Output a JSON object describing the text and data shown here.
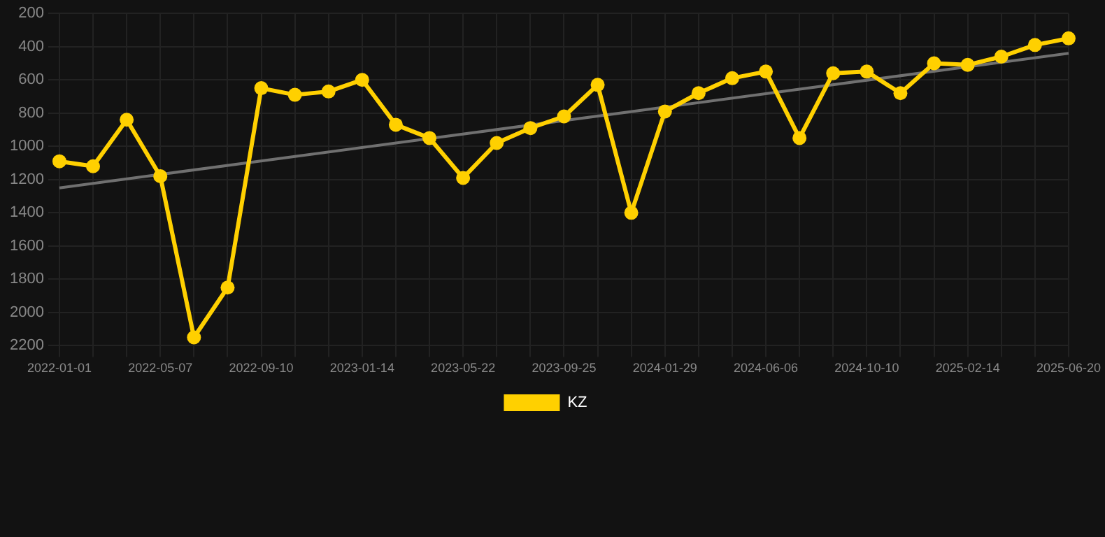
{
  "chart_data": {
    "type": "line",
    "categories": [
      "2022-01-01",
      null,
      null,
      "2022-05-07",
      null,
      null,
      "2022-09-10",
      null,
      null,
      "2023-01-14",
      null,
      null,
      "2023-05-22",
      null,
      null,
      "2023-09-25",
      null,
      null,
      "2024-01-29",
      null,
      null,
      "2024-06-06",
      null,
      null,
      "2024-10-10",
      null,
      null,
      "2025-02-14",
      null,
      null,
      "2025-06-20"
    ],
    "series": [
      {
        "name": "KZ",
        "color": "#ffd000",
        "values": [
          1090,
          1120,
          840,
          1180,
          2150,
          1850,
          650,
          690,
          670,
          600,
          870,
          950,
          1190,
          980,
          890,
          820,
          630,
          1400,
          790,
          680,
          590,
          550,
          950,
          560,
          550,
          680,
          500,
          510,
          460,
          390,
          350
        ]
      },
      {
        "type": "line",
        "color": "#707070",
        "values": [
          1250,
          null,
          null,
          null,
          null,
          null,
          null,
          null,
          null,
          null,
          null,
          null,
          null,
          null,
          null,
          null,
          null,
          null,
          null,
          null,
          null,
          null,
          null,
          null,
          null,
          null,
          null,
          null,
          null,
          null,
          440
        ],
        "marker": "none"
      }
    ],
    "ylim": [
      2200,
      200
    ],
    "yticks": [
      200,
      400,
      600,
      800,
      1000,
      1200,
      1400,
      1600,
      1800,
      2000,
      2200
    ],
    "grid": true,
    "legend": "bottom",
    "marker": "circle",
    "line_style": "solid"
  }
}
